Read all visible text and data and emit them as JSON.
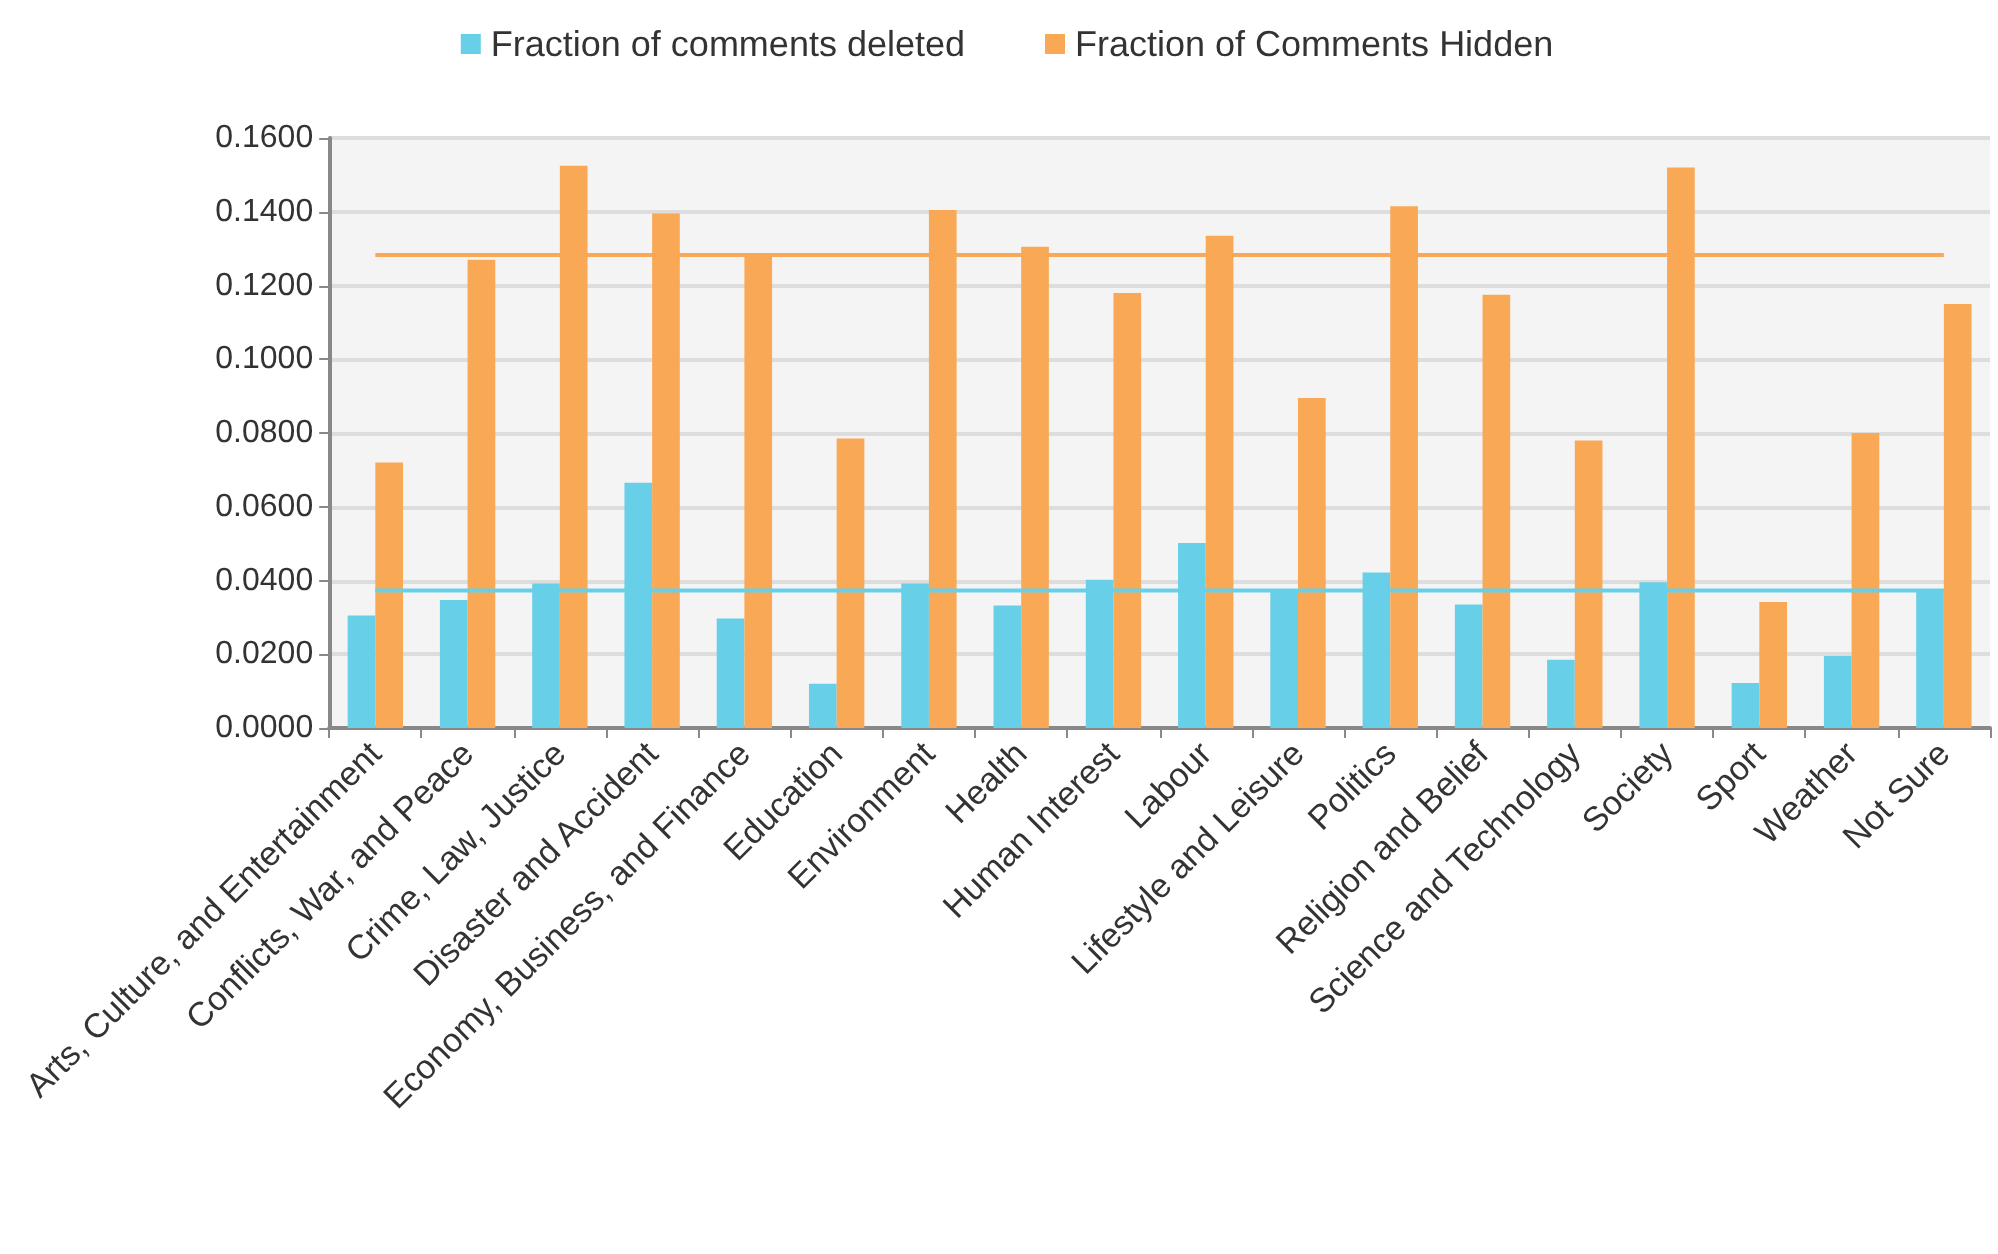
{
  "chart_data": {
    "type": "bar",
    "categories": [
      "Arts, Culture, and Entertainment",
      "Conflicts, War, and Peace",
      "Crime, Law, Justice",
      "Disaster and Accident",
      "Economy, Business, and Finance",
      "Education",
      "Environment",
      "Health",
      "Human Interest",
      "Labour",
      "Lifestyle and Leisure",
      "Politics",
      "Religion and Belief",
      "Science and Technology",
      "Society",
      "Sport",
      "Weather",
      "Not Sure"
    ],
    "series": [
      {
        "name": "Fraction of comments deleted",
        "color": "#68cfe8",
        "values": [
          0.0305,
          0.0347,
          0.0392,
          0.0665,
          0.0297,
          0.012,
          0.0392,
          0.0332,
          0.0402,
          0.0502,
          0.0372,
          0.0422,
          0.0335,
          0.0185,
          0.0395,
          0.0122,
          0.0195,
          0.0375
        ]
      },
      {
        "name": "Fraction of Comments Hidden",
        "color": "#f9a856",
        "values": [
          0.072,
          0.127,
          0.1525,
          0.1395,
          0.1285,
          0.0785,
          0.1405,
          0.1305,
          0.118,
          0.1335,
          0.0895,
          0.1415,
          0.1175,
          0.078,
          0.152,
          0.0342,
          0.08,
          0.115
        ]
      }
    ],
    "ref_lines": [
      {
        "axis": "y",
        "value": 0.1283,
        "color": "#f9a856"
      },
      {
        "axis": "y",
        "value": 0.0373,
        "color": "#68cfe8"
      }
    ],
    "ylim": [
      0,
      0.16
    ],
    "yticks": [
      {
        "value": 0,
        "label": "0.0000"
      },
      {
        "value": 0.02,
        "label": "0.0200"
      },
      {
        "value": 0.04,
        "label": "0.0400"
      },
      {
        "value": 0.06,
        "label": "0.0600"
      },
      {
        "value": 0.08,
        "label": "0.0800"
      },
      {
        "value": 0.1,
        "label": "0.1000"
      },
      {
        "value": 0.12,
        "label": "0.1200"
      },
      {
        "value": 0.14,
        "label": "0.1400"
      },
      {
        "value": 0.16,
        "label": "0.1600"
      }
    ],
    "grid": "y",
    "legend": "top"
  }
}
